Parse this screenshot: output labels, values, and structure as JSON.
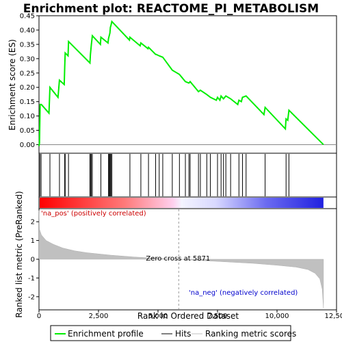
{
  "chart_data": {
    "type": "line",
    "title": "Enrichment plot: REACTOME_PI_METABOLISM",
    "panels": {
      "enrichment": {
        "ylabel": "Enrichment score (ES)",
        "ylim": [
          -0.03,
          0.45
        ],
        "yticks": [
          0.0,
          0.05,
          0.1,
          0.15,
          0.2,
          0.25,
          0.3,
          0.35,
          0.4,
          0.45
        ],
        "ytick_labels": [
          "0.00",
          "0.05",
          "0.10",
          "0.15",
          "0.20",
          "0.25",
          "0.30",
          "0.35",
          "0.40",
          "0.45"
        ],
        "series": [
          {
            "name": "Enrichment profile",
            "color": "#00ee00",
            "x": [
              0,
              20,
              50,
              100,
              420,
              460,
              800,
              860,
              1060,
              1080,
              1100,
              1220,
              1240,
              2140,
              2160,
              2200,
              2240,
              2580,
              2600,
              2900,
              2920,
              2950,
              2980,
              3000,
              3020,
              3060,
              3800,
              3820,
              4250,
              4280,
              4580,
              4600,
              4900,
              4920,
              5050,
              5200,
              5600,
              5900,
              6150,
              6300,
              6350,
              6700,
              6780,
              7050,
              7200,
              7450,
              7500,
              7600,
              7650,
              7750,
              7850,
              8050,
              8350,
              8400,
              8500,
              8550,
              8700,
              9450,
              9500,
              10350,
              10380,
              10450,
              10500,
              11950
            ],
            "y": [
              -0.005,
              0.005,
              0.14,
              0.14,
              0.11,
              0.2,
              0.165,
              0.225,
              0.21,
              0.27,
              0.32,
              0.31,
              0.36,
              0.285,
              0.315,
              0.35,
              0.38,
              0.35,
              0.375,
              0.355,
              0.37,
              0.38,
              0.39,
              0.41,
              0.415,
              0.43,
              0.365,
              0.375,
              0.345,
              0.355,
              0.335,
              0.34,
              0.315,
              0.315,
              0.31,
              0.305,
              0.26,
              0.245,
              0.22,
              0.215,
              0.22,
              0.185,
              0.19,
              0.175,
              0.165,
              0.155,
              0.165,
              0.155,
              0.17,
              0.16,
              0.17,
              0.16,
              0.14,
              0.155,
              0.15,
              0.165,
              0.17,
              0.105,
              0.13,
              0.055,
              0.09,
              0.085,
              0.12,
              0.0
            ]
          }
        ]
      },
      "hits": {
        "positions": [
          40,
          90,
          460,
          860,
          1080,
          1100,
          1240,
          2140,
          2160,
          2200,
          2240,
          2600,
          2920,
          2950,
          2980,
          3000,
          3020,
          3060,
          3820,
          4280,
          4600,
          4900,
          5050,
          5200,
          5600,
          5900,
          6150,
          6300,
          6350,
          6700,
          6780,
          7050,
          7200,
          7500,
          7650,
          7750,
          7850,
          8050,
          8400,
          8550,
          8700,
          9500,
          10380,
          10500
        ]
      },
      "ranked_metric": {
        "ylabel": "Ranked list metric (PreRanked)",
        "xlabel": "Rank in Ordered Dataset",
        "xlim": [
          0,
          12500
        ],
        "xticks": [
          0,
          2500,
          5000,
          7500,
          10000,
          12500
        ],
        "xtick_labels": [
          "0",
          "2,500",
          "5,000",
          "7,500",
          "10,000",
          "12,500"
        ],
        "ylim": [
          -2.7,
          2.7
        ],
        "yticks": [
          -2,
          -1,
          0,
          1,
          2
        ],
        "ytick_labels": [
          "-2",
          "-1",
          "0",
          "1",
          "2"
        ],
        "fill_color": "#c0c0c0",
        "x": [
          0,
          20,
          100,
          300,
          600,
          1000,
          1500,
          2000,
          3000,
          4000,
          5000,
          5871,
          7000,
          8000,
          9000,
          10000,
          10800,
          11300,
          11600,
          11800,
          11900,
          11950
        ],
        "y": [
          2.6,
          1.6,
          1.3,
          1.0,
          0.8,
          0.6,
          0.45,
          0.35,
          0.22,
          0.12,
          0.05,
          0.0,
          -0.08,
          -0.15,
          -0.22,
          -0.32,
          -0.42,
          -0.55,
          -0.75,
          -1.05,
          -1.6,
          -2.6
        ],
        "zero_cross_rank": 5871,
        "zero_cross_label": "Zero cross at 5871",
        "pos_label": "'na_pos' (positively correlated)",
        "neg_label": "'na_neg' (negatively correlated)",
        "pos_color": "#cc0000",
        "neg_color": "#0000cc"
      }
    },
    "legend": {
      "placement": "bottom",
      "entries": [
        {
          "label": "Enrichment profile",
          "color": "#00ee00"
        },
        {
          "label": "Hits",
          "color": "#000000"
        },
        {
          "label": "Ranking metric scores",
          "color": "#c0c0c0"
        }
      ]
    }
  }
}
